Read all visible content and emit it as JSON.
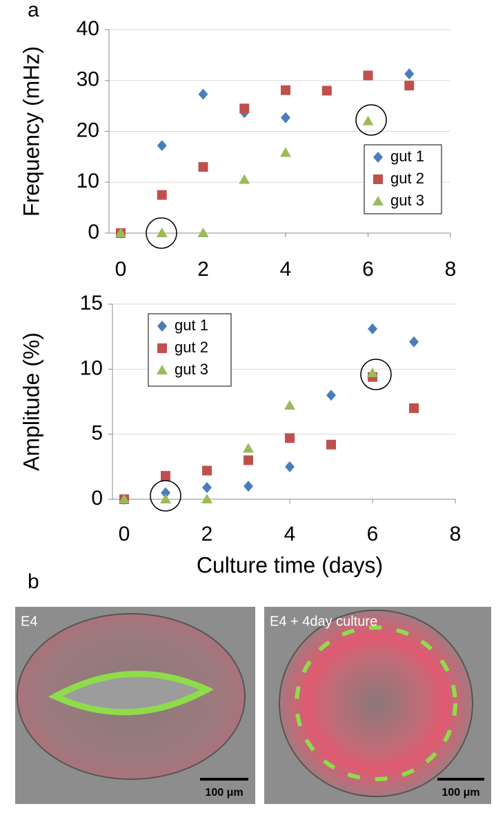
{
  "panel_labels": [
    "a",
    "b"
  ],
  "chart_data": [
    {
      "type": "scatter",
      "y_label": "Frequency (mHz)",
      "x": [
        0,
        1,
        2,
        3,
        4,
        5,
        6,
        7
      ],
      "series": [
        {
          "name": "gut 1",
          "color": "#4a7ebb",
          "marker": "diamond",
          "values": [
            0,
            17.2,
            27.3,
            23.7,
            22.7,
            null,
            null,
            31.3
          ]
        },
        {
          "name": "gut 2",
          "color": "#c0504d",
          "marker": "square",
          "values": [
            0,
            7.5,
            13,
            24.5,
            28.1,
            28,
            31,
            29
          ]
        },
        {
          "name": "gut 3",
          "color": "#9bbb59",
          "marker": "triangle",
          "values": [
            0,
            0,
            0,
            10.5,
            15.8,
            null,
            22,
            null
          ]
        }
      ],
      "xlim": [
        0,
        8
      ],
      "xticks": [
        0,
        2,
        4,
        6,
        8
      ],
      "ylim": [
        0,
        40
      ],
      "yticks": [
        0,
        10,
        20,
        30,
        40
      ],
      "grid": true,
      "legend": "center right"
    },
    {
      "type": "scatter",
      "y_label": "Amplitude (%)",
      "x_label": "Culture time (days)",
      "x": [
        0,
        1,
        2,
        3,
        4,
        5,
        6,
        7
      ],
      "series": [
        {
          "name": "gut 1",
          "color": "#4a7ebb",
          "marker": "diamond",
          "values": [
            0,
            0.5,
            0.9,
            1.0,
            2.5,
            8.0,
            13.1,
            12.1
          ]
        },
        {
          "name": "gut 2",
          "color": "#c0504d",
          "marker": "square",
          "values": [
            0,
            1.8,
            2.2,
            3.0,
            4.7,
            4.2,
            9.4,
            7.0
          ]
        },
        {
          "name": "gut 3",
          "color": "#9bbb59",
          "marker": "triangle",
          "values": [
            0,
            0,
            0,
            3.9,
            7.2,
            null,
            9.7,
            null
          ]
        }
      ],
      "xlim": [
        0,
        8
      ],
      "xticks": [
        0,
        2,
        4,
        6,
        8
      ],
      "ylim": [
        0,
        15
      ],
      "yticks": [
        0,
        5,
        10,
        15
      ],
      "grid": true,
      "legend": "upper left"
    }
  ],
  "images": [
    {
      "label": "E4",
      "scale_bar": "100 μm"
    },
    {
      "label": "E4 + 4day culture",
      "scale_bar": "100 μm"
    }
  ]
}
